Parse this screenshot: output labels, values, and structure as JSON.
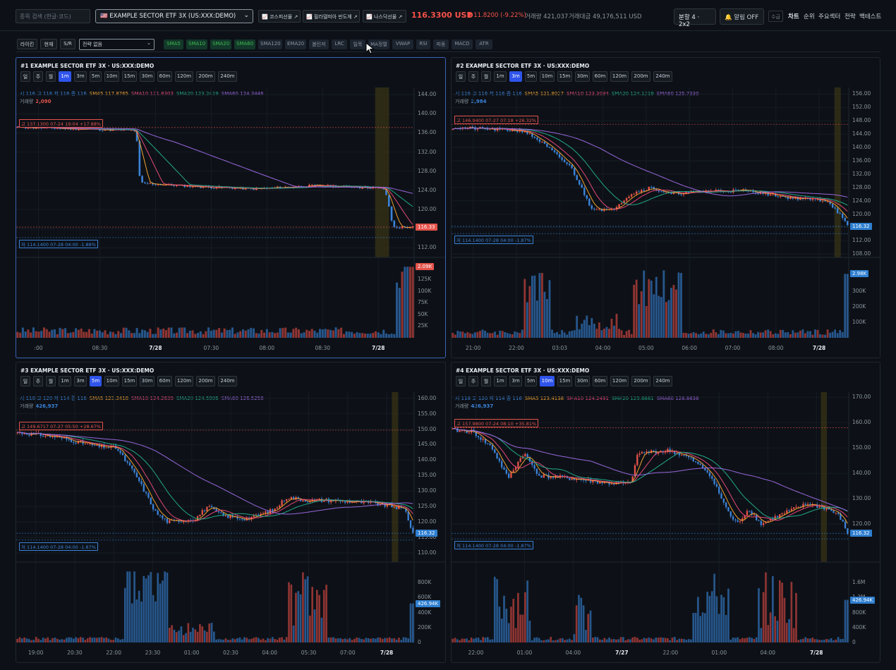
{
  "topbar": {
    "search_placeholder": "종목 검색 (한글·코드)",
    "symbol": "🇺🇸 EXAMPLE SECTOR ETF 3X (US:XXX:DEMO)",
    "links": [
      "📈 코스피선물 ↗",
      "📈 필라델피아 반도체 ↗",
      "📈 나스닥선물 ↗"
    ],
    "price": "116.3300 USD",
    "change": "▼ 11.8200 (-9.22%)",
    "volume": "거래량 421,037",
    "amount": "거래대금 49,176,511 USD",
    "split": "분할 4 · 2x2",
    "alarm": "🔔 알림 OFF",
    "sugeum": "수급",
    "nav": [
      "차트",
      "순위",
      "주요섹터",
      "전략",
      "백테스트"
    ]
  },
  "toolbar": {
    "buttons": [
      "라이킨",
      "현재",
      "S/R"
    ],
    "strategy": "전략 없음",
    "indicators": [
      {
        "label": "SMA5",
        "on": true
      },
      {
        "label": "SMA10",
        "on": true
      },
      {
        "label": "SMA20",
        "on": true
      },
      {
        "label": "SMA60",
        "on": true
      },
      {
        "label": "SMA120",
        "on": false
      },
      {
        "label": "EMA20",
        "on": false
      },
      {
        "label": "볼린저",
        "on": false
      },
      {
        "label": "LRC",
        "on": false
      },
      {
        "label": "일목",
        "on": false
      },
      {
        "label": "MA정렬",
        "on": false
      },
      {
        "label": "VWAP",
        "on": false
      },
      {
        "label": "RSI",
        "on": false
      },
      {
        "label": "파동",
        "on": false
      },
      {
        "label": "MACD",
        "on": false
      },
      {
        "label": "ATR",
        "on": false
      }
    ]
  },
  "timeframes": [
    "일",
    "주",
    "월",
    "1m",
    "3m",
    "5m",
    "10m",
    "15m",
    "30m",
    "60m",
    "120m",
    "200m",
    "240m"
  ],
  "colors": {
    "up": "#e5534b",
    "down": "#3b82d8",
    "sma5": "#f0a030",
    "sma10": "#e54878",
    "sma20": "#22a888",
    "sma60": "#9966dd"
  },
  "panels": [
    {
      "title": "#1 EXAMPLE SECTOR ETF 3X · US:XXX:DEMO",
      "active_tf": "1m",
      "ohlc": "시 116 고 116 저 116 종 116",
      "sma5": "SMA5 117.8765",
      "sma10": "SMA10 121.8303",
      "sma20": "SMA20 123.2419",
      "sma60": "SMA60 124.3446",
      "vol_label": "거래량",
      "vol_val": "2,090",
      "high_tag": "고 137.1300 07-24 19:04 +17.88%",
      "low_tag": "저 114.1400 07-28 04:00 -1.88%",
      "y_ticks": [
        "144.00",
        "140.00",
        "136.00",
        "132.00",
        "128.00",
        "124.00",
        "120.00",
        "116.00",
        "112.00"
      ],
      "vol_ticks": [
        "150K",
        "125K",
        "100K",
        "75K",
        "50K",
        "25K"
      ],
      "x_ticks": [
        ":00",
        "08:30",
        "7/28",
        "07:30",
        "08:00",
        "08:30",
        "7/28"
      ],
      "last_price": "116.33",
      "last_vol": "2.09K",
      "last_color": "#e5534b"
    },
    {
      "title": "#2 EXAMPLE SECTOR ETF 3X · US:XXX:DEMO",
      "active_tf": "3m",
      "ohlc": "시 116 고 116 저 116 종 116",
      "sma5": "SMA5 121.8027",
      "sma10": "SMA10 123.3094",
      "sma20": "SMA20 124.1219",
      "sma60": "SMA60 125.7330",
      "vol_label": "거래량",
      "vol_val": "2,984",
      "high_tag": "고 146.9400 07-27 07:18 +26.32%",
      "low_tag": "저 114.1400 07-28 04:00 -1.87%",
      "y_ticks": [
        "156.00",
        "152.00",
        "148.00",
        "144.00",
        "140.00",
        "136.00",
        "132.00",
        "128.00",
        "124.00",
        "120.00",
        "116.00",
        "112.00",
        "108.00"
      ],
      "vol_ticks": [
        "400K",
        "300K",
        "200K",
        "100K"
      ],
      "x_ticks": [
        "21:00",
        "22:00",
        "03:03",
        "04:00",
        "05:00",
        "06:00",
        "07:00",
        "08:00",
        "7/28"
      ],
      "last_price": "116.32",
      "last_vol": "2.98K",
      "last_color": "#2f7fd0"
    },
    {
      "title": "#3 EXAMPLE SECTOR ETF 3X · US:XXX:DEMO",
      "active_tf": "5m",
      "ohlc": "시 118 고 120 저 114 종 116",
      "sma5": "SMA5 123.3418",
      "sma10": "SMA10 124.2639",
      "sma20": "SMA20 124.5906",
      "sma60": "SMA60 126.5258",
      "vol_label": "거래량",
      "vol_val": "426,937",
      "high_tag": "고 149.6717 07-27 05:50 +28.67%",
      "low_tag": "저 114.1400 07-28 04:00 -1.87%",
      "y_ticks": [
        "160.00",
        "155.00",
        "150.00",
        "145.00",
        "140.00",
        "135.00",
        "130.00",
        "125.00",
        "120.00",
        "115.00",
        "110.00"
      ],
      "vol_ticks": [
        "800K",
        "600K",
        "400K",
        "200K",
        "0"
      ],
      "x_ticks": [
        "19:00",
        "20:30",
        "22:00",
        "23:30",
        "01:00",
        "02:30",
        "04:00",
        "05:30",
        "07:00",
        "7/28"
      ],
      "last_price": "116.32",
      "last_vol": "426.94K",
      "last_color": "#2f7fd0"
    },
    {
      "title": "#4 EXAMPLE SECTOR ETF 3X · US:XXX:DEMO",
      "active_tf": "10m",
      "ohlc": "시 118 고 120 저 114 종 116",
      "sma5": "SMA5 123.4138",
      "sma10": "SMA10 124.2491",
      "sma20": "SMA20 125.6881",
      "sma60": "SMA60 128.8636",
      "vol_label": "거래량",
      "vol_val": "426,937",
      "high_tag": "고 157.9800 07-24 08:10 +35.81%",
      "low_tag": "저 114.1400 07-28 04:00 -1.87%",
      "y_ticks": [
        "170.00",
        "160.00",
        "150.00",
        "140.00",
        "130.00",
        "120.00"
      ],
      "vol_ticks": [
        "1.6M",
        "1.2M",
        "800K",
        "400K",
        "0"
      ],
      "x_ticks": [
        "22:00",
        "01:00",
        "04:00",
        "7/27",
        "22:00",
        "01:00",
        "04:00",
        "7/28"
      ],
      "last_price": "116.32",
      "last_vol": "426.94K",
      "last_color": "#2f7fd0"
    }
  ]
}
